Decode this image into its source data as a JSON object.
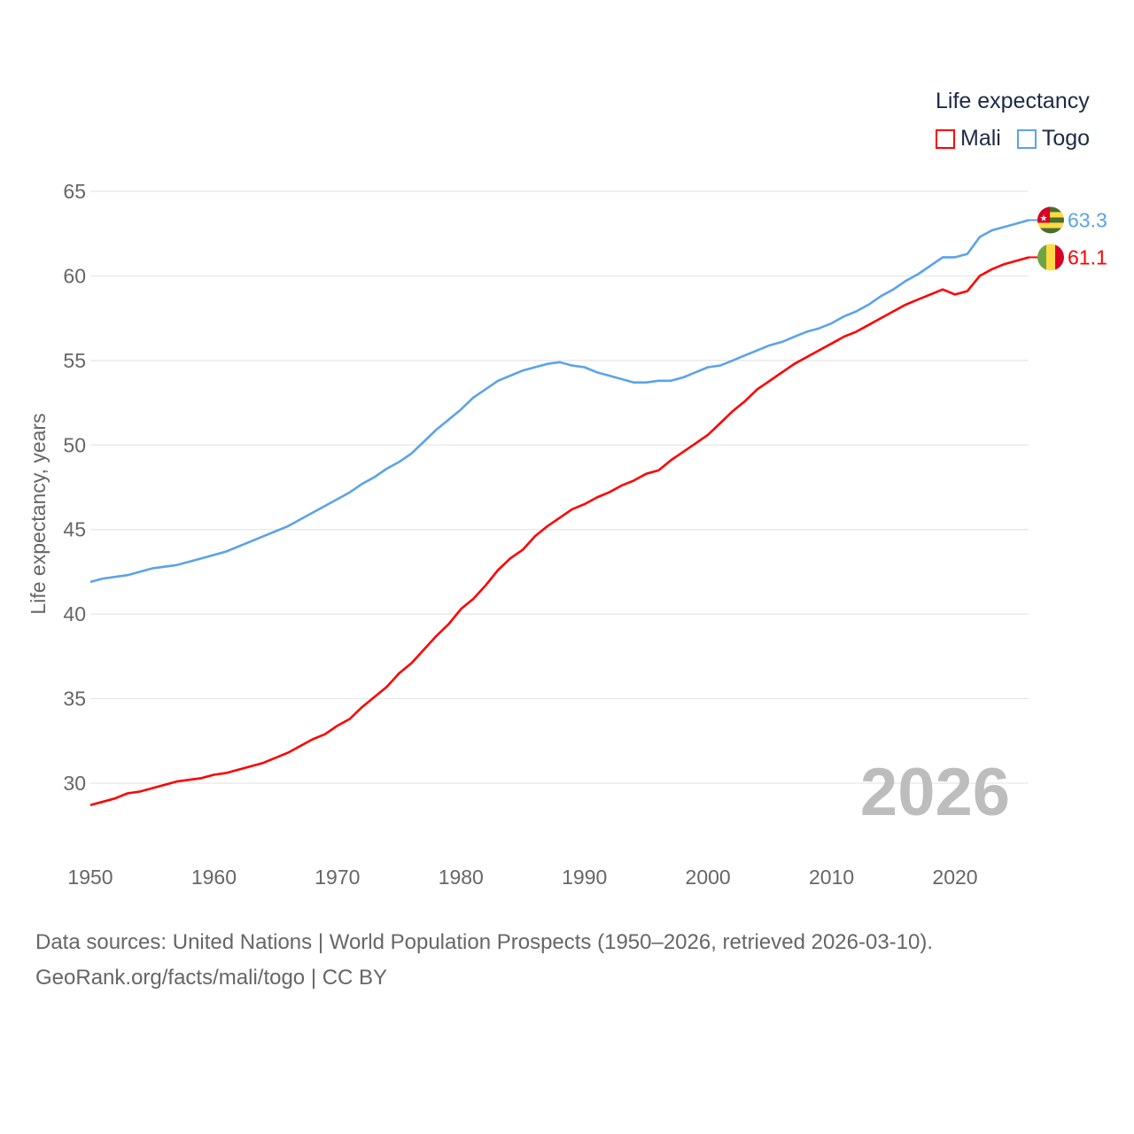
{
  "chart_data": {
    "type": "line",
    "title": "",
    "xlabel": "",
    "ylabel": "Life expectancy, years",
    "xlim": [
      1950,
      2026
    ],
    "ylim": [
      27,
      66
    ],
    "xticks": [
      1950,
      1960,
      1970,
      1980,
      1990,
      2000,
      2010,
      2020
    ],
    "yticks": [
      30,
      35,
      40,
      45,
      50,
      55,
      60,
      65
    ],
    "grid": true,
    "legend_title": "Life expectancy",
    "legend_placement": "top-right",
    "year_label": "2026",
    "series": [
      {
        "name": "Mali",
        "color": "#ff0000",
        "end_label": "61.1",
        "points": [
          [
            1950,
            28.7
          ],
          [
            1952,
            29.1
          ],
          [
            1953,
            29.4
          ],
          [
            1954,
            29.5
          ],
          [
            1957,
            30.1
          ],
          [
            1959,
            30.3
          ],
          [
            1960,
            30.5
          ],
          [
            1961,
            30.6
          ],
          [
            1964,
            31.2
          ],
          [
            1966,
            31.8
          ],
          [
            1968,
            32.6
          ],
          [
            1969,
            32.9
          ],
          [
            1970,
            33.4
          ],
          [
            1971,
            33.8
          ],
          [
            1972,
            34.5
          ],
          [
            1974,
            35.7
          ],
          [
            1975,
            36.5
          ],
          [
            1976,
            37.1
          ],
          [
            1978,
            38.7
          ],
          [
            1979,
            39.4
          ],
          [
            1980,
            40.3
          ],
          [
            1981,
            40.9
          ],
          [
            1982,
            41.7
          ],
          [
            1983,
            42.6
          ],
          [
            1984,
            43.3
          ],
          [
            1985,
            43.8
          ],
          [
            1986,
            44.6
          ],
          [
            1987,
            45.2
          ],
          [
            1988,
            45.7
          ],
          [
            1989,
            46.2
          ],
          [
            1990,
            46.5
          ],
          [
            1991,
            46.9
          ],
          [
            1992,
            47.2
          ],
          [
            1993,
            47.6
          ],
          [
            1994,
            47.9
          ],
          [
            1995,
            48.3
          ],
          [
            1996,
            48.5
          ],
          [
            1997,
            49.1
          ],
          [
            1998,
            49.6
          ],
          [
            1999,
            50.1
          ],
          [
            2000,
            50.6
          ],
          [
            2001,
            51.3
          ],
          [
            2002,
            52.0
          ],
          [
            2003,
            52.6
          ],
          [
            2004,
            53.3
          ],
          [
            2005,
            53.8
          ],
          [
            2006,
            54.3
          ],
          [
            2007,
            54.8
          ],
          [
            2008,
            55.2
          ],
          [
            2009,
            55.6
          ],
          [
            2010,
            56.0
          ],
          [
            2011,
            56.4
          ],
          [
            2012,
            56.7
          ],
          [
            2013,
            57.1
          ],
          [
            2014,
            57.5
          ],
          [
            2015,
            57.9
          ],
          [
            2016,
            58.3
          ],
          [
            2017,
            58.6
          ],
          [
            2018,
            58.9
          ],
          [
            2019,
            59.2
          ],
          [
            2020,
            58.9
          ],
          [
            2021,
            59.1
          ],
          [
            2022,
            60.0
          ],
          [
            2023,
            60.4
          ],
          [
            2024,
            60.7
          ],
          [
            2025,
            60.9
          ],
          [
            2026,
            61.1
          ]
        ]
      },
      {
        "name": "Togo",
        "color": "#5ba3e8",
        "end_label": "63.3",
        "points": [
          [
            1950,
            41.9
          ],
          [
            1951,
            42.1
          ],
          [
            1953,
            42.3
          ],
          [
            1955,
            42.7
          ],
          [
            1957,
            42.9
          ],
          [
            1959,
            43.3
          ],
          [
            1961,
            43.7
          ],
          [
            1963,
            44.3
          ],
          [
            1964,
            44.6
          ],
          [
            1966,
            45.2
          ],
          [
            1968,
            46.0
          ],
          [
            1970,
            46.8
          ],
          [
            1971,
            47.2
          ],
          [
            1972,
            47.7
          ],
          [
            1973,
            48.1
          ],
          [
            1974,
            48.6
          ],
          [
            1975,
            49.0
          ],
          [
            1976,
            49.5
          ],
          [
            1977,
            50.2
          ],
          [
            1978,
            50.9
          ],
          [
            1979,
            51.5
          ],
          [
            1980,
            52.1
          ],
          [
            1981,
            52.8
          ],
          [
            1982,
            53.3
          ],
          [
            1983,
            53.8
          ],
          [
            1984,
            54.1
          ],
          [
            1985,
            54.4
          ],
          [
            1986,
            54.6
          ],
          [
            1987,
            54.8
          ],
          [
            1988,
            54.9
          ],
          [
            1989,
            54.7
          ],
          [
            1990,
            54.6
          ],
          [
            1991,
            54.3
          ],
          [
            1992,
            54.1
          ],
          [
            1993,
            53.9
          ],
          [
            1994,
            53.7
          ],
          [
            1995,
            53.7
          ],
          [
            1996,
            53.8
          ],
          [
            1997,
            53.8
          ],
          [
            1998,
            54.0
          ],
          [
            1999,
            54.3
          ],
          [
            2000,
            54.6
          ],
          [
            2001,
            54.7
          ],
          [
            2002,
            55.0
          ],
          [
            2003,
            55.3
          ],
          [
            2004,
            55.6
          ],
          [
            2005,
            55.9
          ],
          [
            2006,
            56.1
          ],
          [
            2007,
            56.4
          ],
          [
            2008,
            56.7
          ],
          [
            2009,
            56.9
          ],
          [
            2010,
            57.2
          ],
          [
            2011,
            57.6
          ],
          [
            2012,
            57.9
          ],
          [
            2013,
            58.3
          ],
          [
            2014,
            58.8
          ],
          [
            2015,
            59.2
          ],
          [
            2016,
            59.7
          ],
          [
            2017,
            60.1
          ],
          [
            2018,
            60.6
          ],
          [
            2019,
            61.1
          ],
          [
            2020,
            61.1
          ],
          [
            2021,
            61.3
          ],
          [
            2022,
            62.3
          ],
          [
            2023,
            62.7
          ],
          [
            2024,
            62.9
          ],
          [
            2025,
            63.1
          ],
          [
            2026,
            63.3
          ]
        ]
      }
    ]
  },
  "footer": {
    "sources": "Data sources: United Nations | World Population Prospects (1950–2026, retrieved 2026-03-10).",
    "credit": "GeoRank.org/facts/mali/togo | CC BY"
  }
}
